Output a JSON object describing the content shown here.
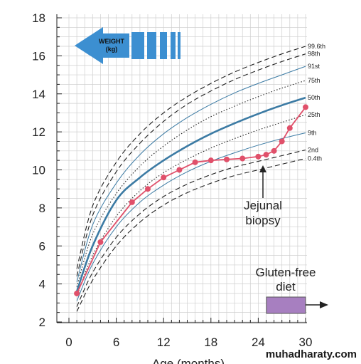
{
  "chart_data": {
    "type": "line",
    "xlabel": "Age (months)",
    "ylabel": "",
    "xlim": [
      0,
      30
    ],
    "ylim": [
      2,
      18
    ],
    "x_ticks": [
      0,
      6,
      12,
      18,
      24,
      30
    ],
    "y_ticks": [
      2,
      4,
      6,
      8,
      10,
      12,
      14,
      16,
      18
    ],
    "grid": true,
    "weight_badge": {
      "line1": "WEIGHT",
      "line2": "(kg)"
    },
    "annotations": {
      "jejunal": [
        "Jejunal",
        "biopsy"
      ],
      "gluten": [
        "Gluten-free",
        "diet"
      ]
    },
    "watermark": "muhadharaty.com",
    "centiles": [
      {
        "name": "99.6th",
        "style": "dashed",
        "color": "#222222",
        "x": [
          1,
          3,
          6,
          9,
          12,
          15,
          18,
          21,
          24,
          27,
          30
        ],
        "y": [
          4.8,
          8.1,
          10.4,
          11.9,
          13.0,
          13.85,
          14.55,
          15.15,
          15.65,
          16.1,
          16.5
        ]
      },
      {
        "name": "98th",
        "style": "dashed",
        "color": "#222222",
        "x": [
          1,
          3,
          6,
          9,
          12,
          15,
          18,
          21,
          24,
          27,
          30
        ],
        "y": [
          4.4,
          7.6,
          9.9,
          11.4,
          12.55,
          13.45,
          14.15,
          14.75,
          15.25,
          15.7,
          16.1
        ]
      },
      {
        "name": "91st",
        "style": "solid",
        "color": "#3c7ba4",
        "x": [
          1,
          3,
          6,
          9,
          12,
          15,
          18,
          21,
          24,
          27,
          30
        ],
        "y": [
          4.1,
          7.1,
          9.3,
          10.8,
          11.9,
          12.75,
          13.45,
          14.05,
          14.55,
          15.0,
          15.45
        ]
      },
      {
        "name": "75th",
        "style": "dotted",
        "color": "#222222",
        "x": [
          1,
          3,
          6,
          9,
          12,
          15,
          18,
          21,
          24,
          27,
          30
        ],
        "y": [
          3.85,
          6.6,
          8.75,
          10.2,
          11.25,
          12.1,
          12.8,
          13.35,
          13.85,
          14.3,
          14.7
        ]
      },
      {
        "name": "50th",
        "style": "bold",
        "color": "#3c7ba4",
        "x": [
          1,
          3,
          6,
          9,
          12,
          15,
          18,
          21,
          24,
          27,
          30
        ],
        "y": [
          3.6,
          6.0,
          8.4,
          9.6,
          10.5,
          11.25,
          11.9,
          12.45,
          12.95,
          13.4,
          13.8
        ]
      },
      {
        "name": "25th",
        "style": "dotted",
        "color": "#222222",
        "x": [
          1,
          3,
          6,
          9,
          12,
          15,
          18,
          21,
          24,
          27,
          30
        ],
        "y": [
          3.35,
          5.5,
          7.55,
          8.9,
          9.85,
          10.55,
          11.15,
          11.65,
          12.1,
          12.5,
          12.9
        ]
      },
      {
        "name": "9th",
        "style": "solid",
        "color": "#3c7ba4",
        "x": [
          1,
          3,
          6,
          9,
          12,
          15,
          18,
          21,
          24,
          27,
          30
        ],
        "y": [
          3.1,
          5.05,
          7.0,
          8.3,
          9.2,
          9.9,
          10.45,
          10.9,
          11.3,
          11.65,
          11.95
        ]
      },
      {
        "name": "2nd",
        "style": "dashed",
        "color": "#222222",
        "x": [
          1,
          3,
          6,
          9,
          12,
          15,
          18,
          21,
          24,
          27,
          30
        ],
        "y": [
          2.8,
          4.6,
          6.45,
          7.7,
          8.6,
          9.25,
          9.75,
          10.15,
          10.45,
          10.75,
          11.05
        ]
      },
      {
        "name": "0.4th",
        "style": "dashed",
        "color": "#222222",
        "x": [
          1,
          3,
          6,
          9,
          12,
          15,
          18,
          21,
          24,
          27,
          30
        ],
        "y": [
          2.55,
          4.2,
          6.0,
          7.25,
          8.15,
          8.8,
          9.3,
          9.7,
          10.0,
          10.3,
          10.6
        ]
      }
    ],
    "series": [
      {
        "name": "",
        "color": "#e0506a",
        "x": [
          1,
          4,
          8,
          10,
          12,
          14,
          16,
          18,
          20,
          22,
          24,
          25,
          26,
          27,
          28,
          30
        ],
        "y": [
          3.5,
          6.2,
          8.3,
          9.0,
          9.6,
          10.0,
          10.4,
          10.5,
          10.55,
          10.6,
          10.7,
          10.8,
          11.0,
          11.5,
          12.2,
          13.3
        ]
      }
    ]
  }
}
